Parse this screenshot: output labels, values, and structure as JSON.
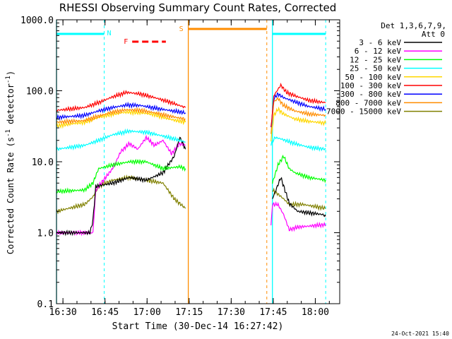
{
  "chart_data": {
    "type": "line",
    "title": "RHESSI Observing Summary Count Rates, Corrected",
    "xlabel": "Start Time (30-Dec-14 16:27:42)",
    "ylabel_main": "Corrected Count Rate (s",
    "ylabel_sup1": "-1",
    "ylabel_mid": " detector",
    "ylabel_sup2": "-1",
    "ylabel_end": ")",
    "yscale": "log",
    "ylim": [
      0.1,
      1000
    ],
    "x_unit": "minutes from 16:27:42",
    "xlim": [
      0,
      101
    ],
    "x_ticks": [
      {
        "label": "16:30",
        "t": 2.3
      },
      {
        "label": "16:45",
        "t": 17.3
      },
      {
        "label": "17:00",
        "t": 32.3
      },
      {
        "label": "17:15",
        "t": 47.3
      },
      {
        "label": "17:30",
        "t": 62.3
      },
      {
        "label": "17:45",
        "t": 77.3
      },
      {
        "label": "18:00",
        "t": 92.3
      }
    ],
    "y_ticks": [
      {
        "label": "1000.0",
        "v": 1000
      },
      {
        "label": "100.0",
        "v": 100
      },
      {
        "label": "10.0",
        "v": 10
      },
      {
        "label": "1.0",
        "v": 1
      },
      {
        "label": "0.1",
        "v": 0.1
      }
    ],
    "legend": {
      "header1": "Det 1,3,6,7,9,",
      "header2": "Att 0",
      "placement": "right"
    },
    "series": [
      {
        "name": "3 - 6 keV",
        "color": "#000000",
        "segments": [
          [
            [
              0,
              1.0
            ],
            [
              12,
              1.0
            ],
            [
              13,
              1.5
            ],
            [
              14,
              4.5
            ],
            [
              20,
              5
            ],
            [
              26,
              6
            ],
            [
              32,
              5.5
            ],
            [
              38,
              7
            ],
            [
              42,
              12
            ],
            [
              44,
              22
            ],
            [
              46,
              15
            ]
          ],
          [
            [
              77,
              3
            ],
            [
              80,
              6
            ],
            [
              83,
              2.6
            ],
            [
              86,
              2.0
            ],
            [
              95,
              1.8
            ],
            [
              96,
              1.7
            ]
          ]
        ]
      },
      {
        "name": "6 - 12 keV",
        "color": "#ff00ff",
        "segments": [
          [
            [
              0,
              1.0
            ],
            [
              13,
              1.0
            ],
            [
              14,
              4.0
            ],
            [
              20,
              8
            ],
            [
              23,
              14
            ],
            [
              26,
              18
            ],
            [
              29,
              15
            ],
            [
              32,
              22
            ],
            [
              35,
              17
            ],
            [
              38,
              20
            ],
            [
              41,
              13
            ],
            [
              44,
              18
            ],
            [
              46,
              17
            ]
          ],
          [
            [
              76.5,
              1.2
            ],
            [
              77,
              2.5
            ],
            [
              79,
              2.5
            ],
            [
              81,
              1.8
            ],
            [
              83,
              1.1
            ],
            [
              86,
              1.2
            ],
            [
              96,
              1.3
            ]
          ]
        ]
      },
      {
        "name": "12 - 25 keV",
        "color": "#00ff00",
        "segments": [
          [
            [
              0,
              3.8
            ],
            [
              10,
              4
            ],
            [
              13,
              5
            ],
            [
              15,
              8
            ],
            [
              20,
              9
            ],
            [
              26,
              10
            ],
            [
              32,
              10
            ],
            [
              38,
              8
            ],
            [
              44,
              8.5
            ],
            [
              46,
              8
            ]
          ],
          [
            [
              77,
              5
            ],
            [
              79,
              9
            ],
            [
              81,
              12
            ],
            [
              83,
              8
            ],
            [
              85,
              7
            ],
            [
              90,
              6
            ],
            [
              96,
              5.5
            ]
          ]
        ]
      },
      {
        "name": "25 - 50 keV",
        "color": "#00ffff",
        "segments": [
          [
            [
              0,
              15
            ],
            [
              10,
              17
            ],
            [
              15,
              20
            ],
            [
              20,
              24
            ],
            [
              26,
              27
            ],
            [
              32,
              26
            ],
            [
              38,
              23
            ],
            [
              44,
              20
            ],
            [
              46,
              19
            ]
          ],
          [
            [
              76.5,
              18
            ],
            [
              78,
              22
            ],
            [
              80,
              21
            ],
            [
              85,
              18
            ],
            [
              90,
              16
            ],
            [
              96,
              15
            ]
          ]
        ]
      },
      {
        "name": "50 - 100 keV",
        "color": "#ffd700",
        "segments": [
          [
            [
              0,
              32
            ],
            [
              10,
              36
            ],
            [
              15,
              42
            ],
            [
              20,
              47
            ],
            [
              25,
              50
            ],
            [
              30,
              49
            ],
            [
              35,
              46
            ],
            [
              40,
              40
            ],
            [
              46,
              36
            ]
          ],
          [
            [
              76.5,
              20
            ],
            [
              77.5,
              45
            ],
            [
              79,
              55
            ],
            [
              81,
              47
            ],
            [
              85,
              40
            ],
            [
              90,
              37
            ],
            [
              96,
              35
            ]
          ]
        ]
      },
      {
        "name": "100 - 300 keV",
        "color": "#ff0000",
        "segments": [
          [
            [
              0,
              53
            ],
            [
              10,
              58
            ],
            [
              15,
              68
            ],
            [
              20,
              82
            ],
            [
              25,
              95
            ],
            [
              30,
              90
            ],
            [
              35,
              80
            ],
            [
              40,
              70
            ],
            [
              46,
              58
            ]
          ],
          [
            [
              76.5,
              30
            ],
            [
              77.5,
              85
            ],
            [
              79,
              105
            ],
            [
              80,
              120
            ],
            [
              82,
              95
            ],
            [
              85,
              85
            ],
            [
              90,
              73
            ],
            [
              96,
              68
            ]
          ]
        ]
      },
      {
        "name": "300 - 800 keV",
        "color": "#0000ff",
        "segments": [
          [
            [
              0,
              42
            ],
            [
              10,
              45
            ],
            [
              15,
              52
            ],
            [
              20,
              58
            ],
            [
              25,
              63
            ],
            [
              30,
              62
            ],
            [
              35,
              57
            ],
            [
              40,
              53
            ],
            [
              46,
              49
            ]
          ],
          [
            [
              76.5,
              30
            ],
            [
              77.5,
              78
            ],
            [
              79,
              90
            ],
            [
              81,
              80
            ],
            [
              85,
              70
            ],
            [
              90,
              60
            ],
            [
              96,
              55
            ]
          ]
        ]
      },
      {
        "name": "800 - 7000 keV",
        "color": "#ff8c00",
        "segments": [
          [
            [
              0,
              36
            ],
            [
              10,
              38
            ],
            [
              15,
              44
            ],
            [
              20,
              50
            ],
            [
              25,
              54
            ],
            [
              30,
              53
            ],
            [
              35,
              49
            ],
            [
              40,
              44
            ],
            [
              46,
              40
            ]
          ],
          [
            [
              76.5,
              25
            ],
            [
              77.5,
              70
            ],
            [
              79,
              78
            ],
            [
              81,
              62
            ],
            [
              85,
              52
            ],
            [
              90,
              47
            ],
            [
              96,
              45
            ]
          ]
        ]
      },
      {
        "name": "7000 - 15000 keV",
        "color": "#808000",
        "segments": [
          [
            [
              0,
              2.0
            ],
            [
              10,
              2.5
            ],
            [
              13,
              3.2
            ],
            [
              15,
              4.5
            ],
            [
              20,
              5.5
            ],
            [
              26,
              6
            ],
            [
              32,
              5.5
            ],
            [
              38,
              5
            ],
            [
              42,
              3
            ],
            [
              46,
              2.2
            ]
          ],
          [
            [
              77,
              4
            ],
            [
              79,
              3.5
            ],
            [
              81,
              3
            ],
            [
              83,
              2.5
            ],
            [
              88,
              2.5
            ],
            [
              96,
              2.2
            ]
          ]
        ]
      }
    ],
    "annotations": {
      "night_bars": [
        [
          0,
          17
        ],
        [
          77,
          96
        ]
      ],
      "night_color": "#00ffff",
      "night_label": "N",
      "saa_bar": [
        47,
        75
      ],
      "saa_color": "#ff8c00",
      "saa_label": "S",
      "flare_bar": [
        27,
        39
      ],
      "flare_color": "#ff0000",
      "flare_label": "F",
      "cyan_solid_lines": [
        0,
        77
      ],
      "cyan_dashed_lines": [
        17,
        96
      ],
      "orange_solid_lines": [
        47
      ],
      "orange_dashed_lines": [
        75
      ]
    },
    "grid": false
  },
  "footer": {
    "timestamp": "24-Oct-2021 15:40"
  }
}
